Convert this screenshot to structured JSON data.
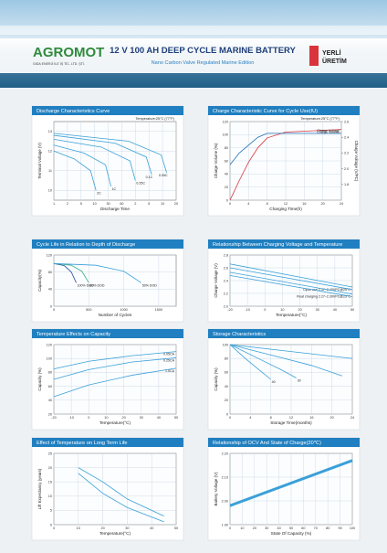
{
  "header": {
    "brand": "AGROMOT",
    "company": "GIDA ENERJİ İLE İŞ TİC. LTD. ŞTİ.",
    "title": "12 V 100 AH DEEP CYCLE MARINE BATTERY",
    "subtitle": "Nano Carbon Valve Regulated Marine Edition",
    "badge_top": "YERLİ",
    "badge_bottom": "ÜRETİM"
  },
  "chart_data": [
    {
      "type": "line",
      "title": "Discharge Characteristics Curve",
      "xlabel": "Discharge Time",
      "ylabel": "Terminal Voltage (V)",
      "annotation": "Temperature:25°C (77°F)",
      "xlim": [
        0,
        9
      ],
      "xticks": [
        {
          "value": 0,
          "label": "1"
        },
        {
          "value": 1,
          "label": "2"
        },
        {
          "value": 2,
          "label": "5"
        },
        {
          "value": 3,
          "label": "10"
        },
        {
          "value": 4,
          "label": "30"
        },
        {
          "value": 5,
          "label": "60"
        },
        {
          "value": 6,
          "label": "2"
        },
        {
          "value": 7,
          "label": "5"
        },
        {
          "value": 8,
          "label": "10"
        },
        {
          "value": 9,
          "label": "20"
        }
      ],
      "ylim": [
        9.5,
        13.5
      ],
      "yticks": [
        10,
        11,
        12,
        13
      ],
      "grid": true,
      "series": [
        {
          "name": "2C",
          "color": "#3aa0d8",
          "x": [
            0,
            1.5,
            2.7,
            3.1
          ],
          "values": [
            12.0,
            11.6,
            11.0,
            10.0
          ]
        },
        {
          "name": "1C",
          "color": "#3aa0d8",
          "x": [
            0,
            2.2,
            3.8,
            4.2
          ],
          "values": [
            12.3,
            11.9,
            11.3,
            10.2
          ]
        },
        {
          "name": "0.25C",
          "color": "#3aa0d8",
          "x": [
            0,
            3.5,
            5.6,
            6.0
          ],
          "values": [
            12.6,
            12.2,
            11.5,
            10.5
          ]
        },
        {
          "name": "0.1C",
          "color": "#3aa0d8",
          "x": [
            0,
            4.5,
            6.8,
            7.2
          ],
          "values": [
            12.8,
            12.4,
            11.7,
            10.8
          ]
        },
        {
          "name": "0.05C",
          "color": "#3aa0d8",
          "x": [
            0,
            5.5,
            7.9,
            8.3
          ],
          "values": [
            12.9,
            12.5,
            11.8,
            10.9
          ]
        }
      ]
    },
    {
      "type": "line",
      "title": "Charge Characteristic Curve for Cycle Use(IU)",
      "xlabel": "Charging Time(h)",
      "ylabel": "Charge Volume (%)",
      "y2label": "Charge Voltage (V/PC)",
      "annotation": "Temperature:25°C (77°F)",
      "xlim": [
        0,
        24
      ],
      "xticks": [
        0,
        4,
        8,
        12,
        16,
        20,
        24
      ],
      "ylim": [
        0,
        120
      ],
      "yticks": [
        0,
        20,
        40,
        60,
        80,
        100,
        120
      ],
      "y2lim": [
        1.6,
        2.6
      ],
      "y2ticks": [
        {
          "value": 1.8,
          "label": "1.8"
        },
        {
          "value": 2,
          "label": "2.0"
        },
        {
          "value": 2.2,
          "label": "2.2"
        },
        {
          "value": 2.4,
          "label": "2.4"
        },
        {
          "value": 2.6,
          "label": "2.6"
        }
      ],
      "grid": true,
      "series": [
        {
          "name": "Charge Volume",
          "color": "#d9343a",
          "x": [
            0,
            2,
            4,
            6,
            8,
            12,
            24
          ],
          "values": [
            0,
            30,
            58,
            80,
            95,
            104,
            108
          ]
        },
        {
          "name": "Charge Voltage",
          "color": "#1f6fb5",
          "axis": "y2",
          "x": [
            0,
            2,
            4,
            6,
            8,
            12,
            24
          ],
          "values": [
            2.05,
            2.2,
            2.3,
            2.4,
            2.45,
            2.45,
            2.45
          ]
        }
      ]
    },
    {
      "type": "line",
      "title": "Cycle Life in Relation to Depth of Discharge",
      "xlabel": "Number of Cycles",
      "ylabel": "Capacity(%)",
      "xlim": [
        0,
        1750
      ],
      "xticks": [
        0,
        500,
        1000,
        1500
      ],
      "ylim": [
        0,
        120
      ],
      "yticks": [
        0,
        40,
        80,
        120
      ],
      "grid": true,
      "series": [
        {
          "name": "100% DOD",
          "color": "#2a4f9c",
          "x": [
            0,
            150,
            250,
            320
          ],
          "values": [
            100,
            95,
            80,
            55
          ]
        },
        {
          "name": "80% DOD",
          "color": "#3bb08f",
          "x": [
            0,
            250,
            400,
            500
          ],
          "values": [
            100,
            96,
            82,
            55
          ]
        },
        {
          "name": "50% DOD",
          "color": "#3aa0d8",
          "x": [
            0,
            600,
            1000,
            1250
          ],
          "values": [
            100,
            96,
            82,
            55
          ]
        }
      ]
    },
    {
      "type": "line",
      "title": "Relationship Between Charging Voltage and Temperature",
      "xlabel": "Temperature(°C)",
      "ylabel": "Charge Voltage (V)",
      "xlim": [
        -20,
        50
      ],
      "xticks": [
        -20,
        -10,
        0,
        10,
        20,
        30,
        40,
        50
      ],
      "ylim": [
        2.0,
        2.8
      ],
      "yticks": [
        {
          "value": 2,
          "label": "2.0"
        },
        {
          "value": 2.2,
          "label": "2.2"
        },
        {
          "value": 2.4,
          "label": "2.4"
        },
        {
          "value": 2.6,
          "label": "2.6"
        },
        {
          "value": 2.8,
          "label": "2.8"
        }
      ],
      "grid": true,
      "series": [
        {
          "name": "Cycle use 2.37~2.40VPC@25°C",
          "color": "#3aa0d8",
          "x": [
            -20,
            50
          ],
          "values": [
            2.66,
            2.3
          ]
        },
        {
          "color": "#3aa0d8",
          "x": [
            -20,
            50
          ],
          "values": [
            2.6,
            2.26
          ]
        },
        {
          "name": "Float charging 2.27~2.30VPC@25°C",
          "color": "#3aa0d8",
          "x": [
            -20,
            50
          ],
          "values": [
            2.53,
            2.19
          ]
        },
        {
          "color": "#3aa0d8",
          "x": [
            -20,
            50
          ],
          "values": [
            2.48,
            2.15
          ]
        }
      ]
    },
    {
      "type": "line",
      "title": "Temperature Effects on Capacity",
      "xlabel": "Temperature(°C)",
      "ylabel": "Capacity (%)",
      "xlim": [
        -20,
        50
      ],
      "xticks": [
        -20,
        -10,
        0,
        10,
        20,
        30,
        40,
        50
      ],
      "ylim": [
        20,
        120
      ],
      "yticks": [
        20,
        40,
        60,
        80,
        100,
        120
      ],
      "grid": true,
      "series": [
        {
          "name": "0.05CA",
          "color": "#3aa0d8",
          "x": [
            -20,
            0,
            25,
            50
          ],
          "values": [
            85,
            96,
            104,
            110
          ]
        },
        {
          "name": "0.25CA",
          "color": "#3aa0d8",
          "x": [
            -20,
            0,
            25,
            50
          ],
          "values": [
            70,
            84,
            95,
            101
          ]
        },
        {
          "name": "1.0CA",
          "color": "#3aa0d8",
          "x": [
            -20,
            0,
            25,
            50
          ],
          "values": [
            45,
            62,
            76,
            86
          ]
        }
      ]
    },
    {
      "type": "line",
      "title": "Storage Characteristics",
      "xlabel": "Storage Time(months)",
      "ylabel": "Capacity (%)",
      "xlim": [
        0,
        24
      ],
      "xticks": [
        0,
        4,
        8,
        12,
        16,
        20,
        24
      ],
      "ylim": [
        0,
        100
      ],
      "yticks": [
        0,
        20,
        40,
        60,
        80,
        100
      ],
      "grid": true,
      "series": [
        {
          "name": "40",
          "color": "#3aa0d8",
          "x": [
            0,
            3,
            6,
            8
          ],
          "values": [
            100,
            80,
            62,
            50
          ]
        },
        {
          "name": "30",
          "color": "#3aa0d8",
          "x": [
            0,
            5,
            10,
            13
          ],
          "values": [
            100,
            82,
            64,
            52
          ]
        },
        {
          "color": "#3aa0d8",
          "x": [
            0,
            8,
            16,
            22
          ],
          "values": [
            100,
            85,
            70,
            55
          ]
        },
        {
          "color": "#3aa0d8",
          "x": [
            0,
            12,
            24
          ],
          "values": [
            100,
            90,
            80
          ]
        }
      ]
    },
    {
      "type": "line",
      "title": "Effect of Temperature on Long Term Life",
      "xlabel": "Temperature(°C)",
      "ylabel": "Lift Expectancy (years)",
      "xlim": [
        0,
        50
      ],
      "xticks": [
        0,
        10,
        20,
        30,
        40,
        50
      ],
      "ylim": [
        0,
        25
      ],
      "yticks": [
        0,
        5,
        10,
        15,
        20,
        25
      ],
      "grid": true,
      "series": [
        {
          "color": "#3aa0d8",
          "x": [
            10,
            20,
            30,
            45
          ],
          "values": [
            20,
            15,
            9,
            3
          ]
        },
        {
          "color": "#3aa0d8",
          "x": [
            10,
            20,
            30,
            45
          ],
          "values": [
            18,
            11,
            6,
            1
          ]
        }
      ]
    },
    {
      "type": "line",
      "title": "Relationship of OCV And State of Charge(20℃)",
      "xlabel": "State Of Capacity (%)",
      "ylabel": "Battery Voltage (V)",
      "xlim": [
        0,
        100
      ],
      "xticks": [
        0,
        10,
        20,
        30,
        40,
        50,
        60,
        70,
        80,
        90,
        100
      ],
      "ylim": [
        1.9,
        2.2
      ],
      "yticks": [
        {
          "value": 1.9,
          "label": "1.90"
        },
        {
          "value": 2,
          "label": "2.00"
        },
        {
          "value": 2.1,
          "label": "2.10"
        },
        {
          "value": 2.2,
          "label": "2.20"
        }
      ],
      "grid": true,
      "series": [
        {
          "color": "#3aa0d8",
          "x": [
            0,
            100
          ],
          "values": [
            1.98,
            2.17
          ]
        }
      ]
    }
  ]
}
